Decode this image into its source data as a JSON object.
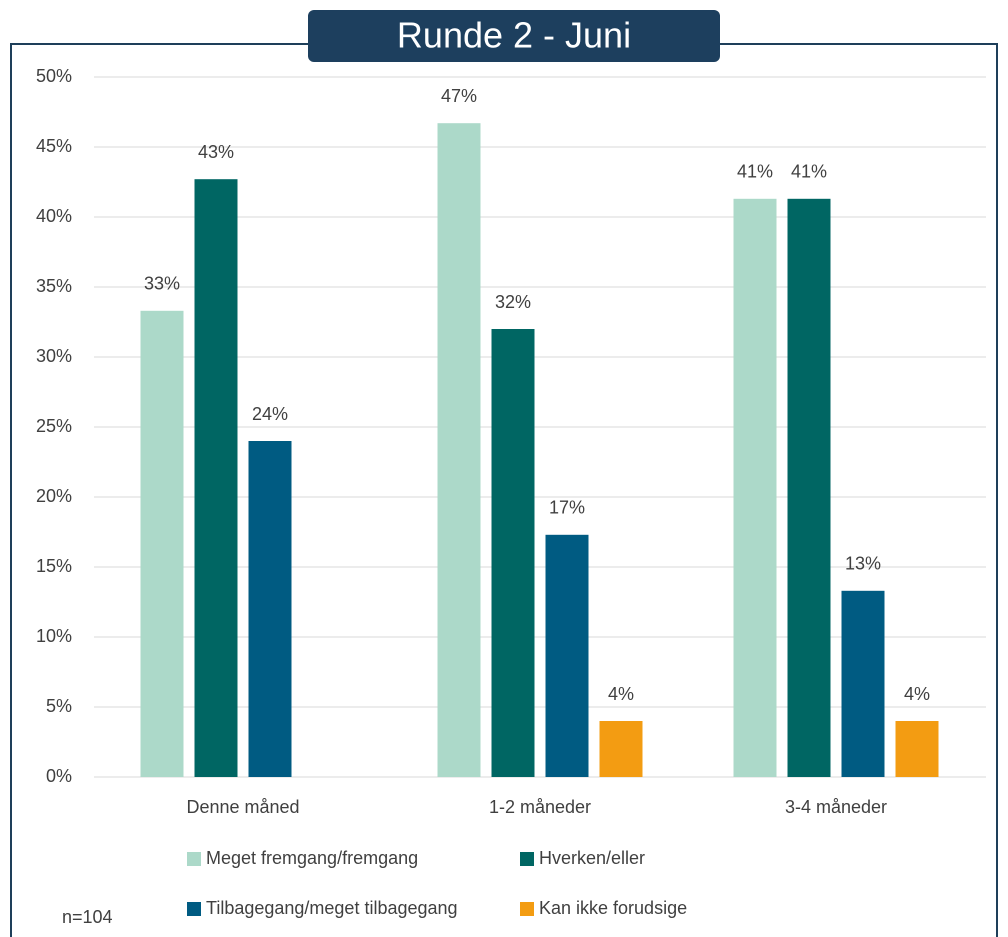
{
  "chart_data": {
    "type": "bar",
    "title": "Runde 2 - Juni",
    "note": "n=104",
    "categories": [
      "Denne måned",
      "1-2 måneder",
      "3-4 måneder"
    ],
    "series": [
      {
        "name": "Meget fremgang/fremgang",
        "color": "#acd9c9",
        "values": [
          33.3,
          46.7,
          41.3
        ],
        "value_labels": [
          "33%",
          "47%",
          "41%"
        ]
      },
      {
        "name": "Hverken/eller",
        "color": "#006663",
        "values": [
          42.7,
          32.0,
          41.3
        ],
        "value_labels": [
          "43%",
          "32%",
          "41%"
        ]
      },
      {
        "name": "Tilbagegang/meget tilbagegang",
        "color": "#005b82",
        "values": [
          24.0,
          17.3,
          13.3
        ],
        "value_labels": [
          "24%",
          "17%",
          "13%"
        ]
      },
      {
        "name": "Kan ikke forudsige",
        "color": "#f39c12",
        "values": [
          null,
          4.0,
          4.0
        ],
        "value_labels": [
          null,
          "4%",
          "4%"
        ]
      }
    ],
    "ylim": [
      0,
      50
    ],
    "yticks": [
      {
        "value": 0,
        "label": "0%"
      },
      {
        "value": 5,
        "label": "5%"
      },
      {
        "value": 10,
        "label": "10%"
      },
      {
        "value": 15,
        "label": "15%"
      },
      {
        "value": 20,
        "label": "20%"
      },
      {
        "value": 25,
        "label": "25%"
      },
      {
        "value": 30,
        "label": "30%"
      },
      {
        "value": 35,
        "label": "35%"
      },
      {
        "value": 40,
        "label": "40%"
      },
      {
        "value": 45,
        "label": "45%"
      },
      {
        "value": 50,
        "label": "50%"
      }
    ],
    "grid": true
  }
}
